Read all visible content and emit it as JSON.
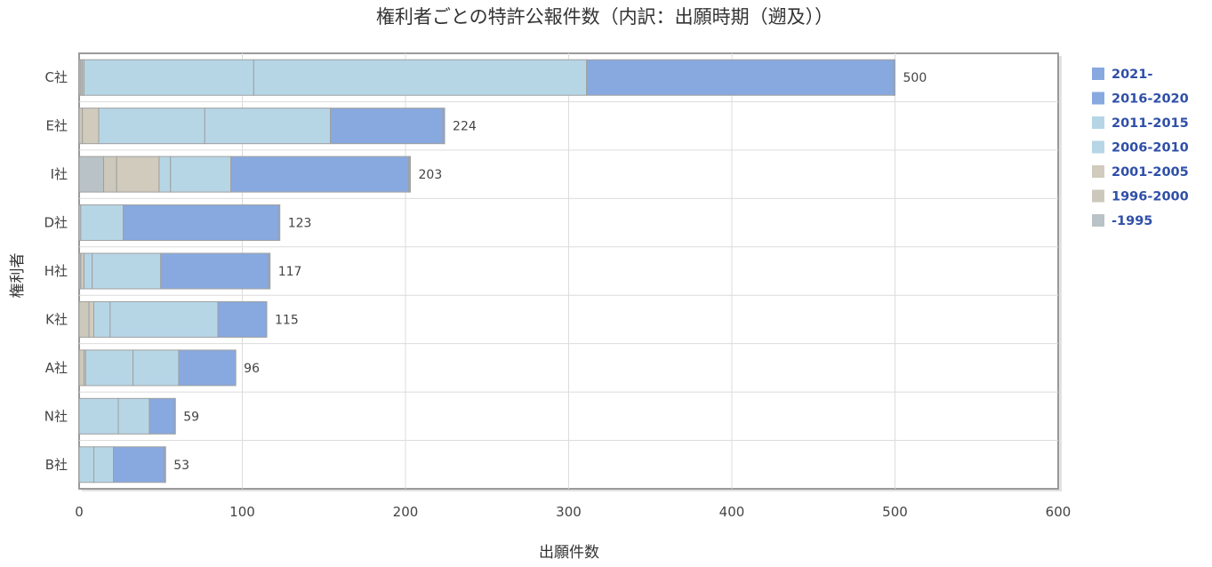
{
  "chart_data": {
    "type": "bar",
    "orientation": "horizontal",
    "stacked": true,
    "title": "権利者ごとの特許公報件数（内訳：出願時期（遡及））",
    "xlabel": "出願件数",
    "ylabel": "権利者",
    "xlim": [
      0,
      600
    ],
    "xticks": [
      0,
      100,
      200,
      300,
      400,
      500,
      600
    ],
    "grid": true,
    "legend_position": "right",
    "categories": [
      "C社",
      "E社",
      "I社",
      "D社",
      "H社",
      "K社",
      "A社",
      "N社",
      "B社"
    ],
    "totals": [
      500,
      224,
      203,
      123,
      117,
      115,
      96,
      59,
      53
    ],
    "series": [
      {
        "name": "-1995",
        "color": "#b9c2c6",
        "values": [
          1,
          0,
          15,
          0,
          1,
          0,
          0,
          0,
          0
        ]
      },
      {
        "name": "1996-2000",
        "color": "#ccc8bb",
        "values": [
          1,
          2,
          8,
          0,
          2,
          6,
          3,
          0,
          0
        ]
      },
      {
        "name": "2001-2005",
        "color": "#d0cbbc",
        "values": [
          1,
          10,
          26,
          0,
          0,
          3,
          1,
          0,
          0
        ]
      },
      {
        "name": "2006-2010",
        "color": "#b6d6e6",
        "values": [
          104,
          65,
          7,
          1,
          5,
          10,
          29,
          24,
          9
        ]
      },
      {
        "name": "2011-2015",
        "color": "#b6d6e6",
        "values": [
          204,
          77,
          37,
          26,
          42,
          66,
          28,
          19,
          12
        ]
      },
      {
        "name": "2016-2020",
        "color": "#87a9df",
        "values": [
          188,
          69,
          109,
          95,
          66,
          30,
          35,
          15,
          31
        ]
      },
      {
        "name": "2021-",
        "color": "#87a9df",
        "values": [
          1,
          1,
          1,
          1,
          1,
          0,
          0,
          1,
          1
        ]
      }
    ],
    "legend_order": [
      "2021-",
      "2016-2020",
      "2011-2015",
      "2006-2010",
      "2001-2005",
      "1996-2000",
      "-1995"
    ]
  }
}
